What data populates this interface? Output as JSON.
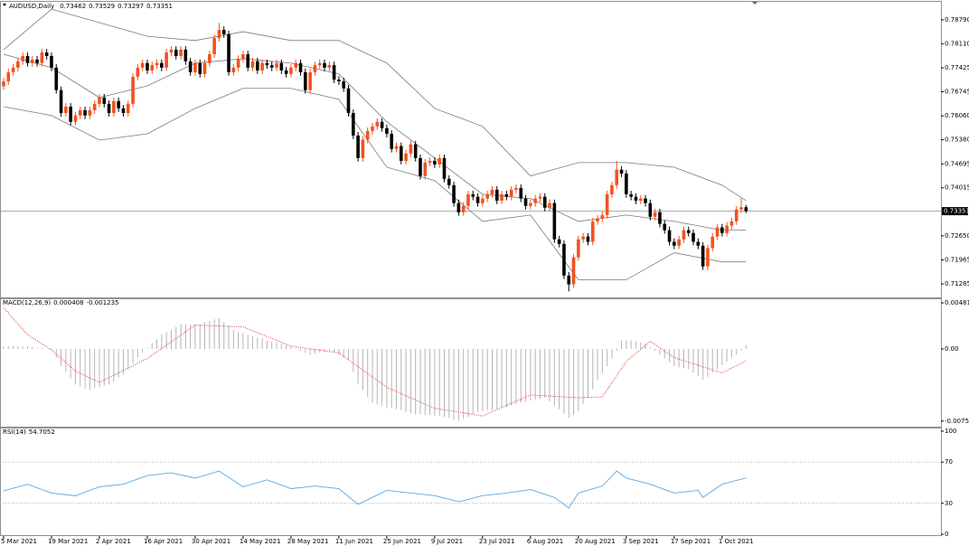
{
  "chart_data": [
    {
      "type": "candlestick",
      "title": "AUDUSD,Daily",
      "up_color": "#f4511e",
      "down_color": "#000000",
      "band_color": "#7a7a7a",
      "price_line_color": "#a0a0a0",
      "xlim": [
        -0.75,
        195.7
      ],
      "ylim": [
        0.709,
        0.793
      ],
      "yticks": [
        {
          "value": 0.7879,
          "label": "0.78790"
        },
        {
          "value": 0.7811,
          "label": "0.78110"
        },
        {
          "value": 0.77425,
          "label": "0.77425"
        },
        {
          "value": 0.76745,
          "label": "0.76745"
        },
        {
          "value": 0.7606,
          "label": "0.76060"
        },
        {
          "value": 0.7538,
          "label": "0.75380"
        },
        {
          "value": 0.74695,
          "label": "0.74695"
        },
        {
          "value": 0.74015,
          "label": "0.74015"
        },
        {
          "value": 0.7265,
          "label": "0.72650"
        },
        {
          "value": 0.71965,
          "label": "0.71965"
        },
        {
          "value": 0.71285,
          "label": "0.71285"
        }
      ],
      "open": [
        0.769,
        0.7704,
        0.773,
        0.7743,
        0.7761,
        0.7776,
        0.7756,
        0.7766,
        0.7756,
        0.7786,
        0.7776,
        0.7743,
        0.7679,
        0.7614,
        0.7632,
        0.7589,
        0.7607,
        0.7622,
        0.7607,
        0.7622,
        0.764,
        0.7658,
        0.764,
        0.7614,
        0.7648,
        0.7627,
        0.7614,
        0.764,
        0.7717,
        0.7743,
        0.7756,
        0.7735,
        0.775,
        0.7756,
        0.7743,
        0.7786,
        0.7794,
        0.7776,
        0.7794,
        0.7761,
        0.773,
        0.7756,
        0.7725,
        0.7756,
        0.7781,
        0.7827,
        0.785,
        0.7838,
        0.773,
        0.7743,
        0.7768,
        0.7781,
        0.7743,
        0.7761,
        0.7735,
        0.7756,
        0.775,
        0.7743,
        0.7756,
        0.7735,
        0.7725,
        0.7743,
        0.7756,
        0.773,
        0.7679,
        0.773,
        0.775,
        0.7756,
        0.7743,
        0.775,
        0.7709,
        0.7704,
        0.7684,
        0.7614,
        0.755,
        0.7486,
        0.7538,
        0.7563,
        0.7576,
        0.7589,
        0.7571,
        0.7555,
        0.7512,
        0.752,
        0.7478,
        0.7499,
        0.7525,
        0.7486,
        0.7435,
        0.7473,
        0.7478,
        0.7468,
        0.7486,
        0.7427,
        0.7409,
        0.7358,
        0.7332,
        0.735,
        0.7383,
        0.7376,
        0.7358,
        0.7371,
        0.7383,
        0.7396,
        0.7365,
        0.7383,
        0.7376,
        0.7396,
        0.7401,
        0.7371,
        0.735,
        0.7358,
        0.7371,
        0.7376,
        0.7345,
        0.7358,
        0.7255,
        0.7242,
        0.7152,
        0.7127,
        0.7204,
        0.7255,
        0.7263,
        0.7248,
        0.7306,
        0.7314,
        0.7324,
        0.7383,
        0.7409,
        0.7453,
        0.7442,
        0.7383,
        0.7376,
        0.7365,
        0.7371,
        0.7358,
        0.7319,
        0.7332,
        0.7299,
        0.7281,
        0.7248,
        0.7237,
        0.7255,
        0.7281,
        0.7273,
        0.7248,
        0.7237,
        0.7178,
        0.723,
        0.7263,
        0.7289,
        0.7273,
        0.7294,
        0.7306,
        0.734,
        0.73462
      ],
      "high": [
        0.7714,
        0.774,
        0.7753,
        0.7771,
        0.7786,
        0.7786,
        0.7776,
        0.7776,
        0.7796,
        0.7796,
        0.7786,
        0.7753,
        0.7689,
        0.7642,
        0.7642,
        0.7617,
        0.7632,
        0.7632,
        0.7632,
        0.765,
        0.7668,
        0.7668,
        0.765,
        0.7658,
        0.7658,
        0.7637,
        0.765,
        0.7727,
        0.7753,
        0.7766,
        0.7766,
        0.776,
        0.7766,
        0.7766,
        0.7796,
        0.7804,
        0.7804,
        0.7804,
        0.7804,
        0.7771,
        0.7766,
        0.7766,
        0.7766,
        0.7791,
        0.7837,
        0.787,
        0.786,
        0.7848,
        0.7753,
        0.7778,
        0.7791,
        0.7791,
        0.7771,
        0.7771,
        0.7766,
        0.7766,
        0.776,
        0.7766,
        0.7766,
        0.7745,
        0.7753,
        0.7766,
        0.7766,
        0.774,
        0.774,
        0.776,
        0.7766,
        0.7766,
        0.776,
        0.776,
        0.7719,
        0.7714,
        0.7694,
        0.7624,
        0.756,
        0.7548,
        0.7573,
        0.7586,
        0.7599,
        0.7599,
        0.7581,
        0.7565,
        0.753,
        0.753,
        0.7509,
        0.7535,
        0.7535,
        0.7496,
        0.7483,
        0.7488,
        0.7488,
        0.7496,
        0.7496,
        0.7437,
        0.7419,
        0.7368,
        0.736,
        0.7393,
        0.7393,
        0.7386,
        0.7381,
        0.7393,
        0.7406,
        0.7406,
        0.7393,
        0.7393,
        0.7406,
        0.7411,
        0.7411,
        0.7381,
        0.7368,
        0.7381,
        0.7386,
        0.7386,
        0.7368,
        0.7368,
        0.7265,
        0.7252,
        0.7162,
        0.7214,
        0.7265,
        0.7273,
        0.7273,
        0.7316,
        0.7324,
        0.7334,
        0.7393,
        0.7419,
        0.7478,
        0.7463,
        0.7452,
        0.7393,
        0.7386,
        0.7381,
        0.7381,
        0.7368,
        0.7342,
        0.7342,
        0.7309,
        0.7291,
        0.7258,
        0.7265,
        0.7291,
        0.7291,
        0.7283,
        0.7258,
        0.7247,
        0.724,
        0.7273,
        0.7299,
        0.7299,
        0.7304,
        0.7316,
        0.735,
        0.7372,
        0.73529
      ],
      "low": [
        0.768,
        0.7694,
        0.772,
        0.7733,
        0.7751,
        0.7746,
        0.7746,
        0.7746,
        0.7746,
        0.7766,
        0.7733,
        0.7669,
        0.7604,
        0.7604,
        0.7579,
        0.7579,
        0.7597,
        0.7597,
        0.7597,
        0.7612,
        0.763,
        0.763,
        0.7604,
        0.7604,
        0.7617,
        0.7604,
        0.7604,
        0.763,
        0.7707,
        0.7733,
        0.7725,
        0.7725,
        0.774,
        0.7733,
        0.7733,
        0.7776,
        0.7766,
        0.7766,
        0.7751,
        0.772,
        0.772,
        0.7715,
        0.7715,
        0.7746,
        0.7771,
        0.7817,
        0.7828,
        0.772,
        0.772,
        0.7733,
        0.7758,
        0.7733,
        0.7733,
        0.7725,
        0.7725,
        0.774,
        0.7733,
        0.7733,
        0.7725,
        0.7715,
        0.7715,
        0.7733,
        0.772,
        0.7669,
        0.7669,
        0.772,
        0.774,
        0.7733,
        0.7733,
        0.7699,
        0.7694,
        0.7674,
        0.7604,
        0.754,
        0.7476,
        0.7476,
        0.7528,
        0.7553,
        0.7566,
        0.7561,
        0.7545,
        0.7502,
        0.7502,
        0.7468,
        0.7468,
        0.7489,
        0.7476,
        0.7425,
        0.7425,
        0.7463,
        0.7458,
        0.7458,
        0.7417,
        0.7399,
        0.7348,
        0.7322,
        0.7322,
        0.734,
        0.7366,
        0.7348,
        0.7348,
        0.7361,
        0.7373,
        0.7355,
        0.7355,
        0.7366,
        0.7366,
        0.7386,
        0.7361,
        0.734,
        0.734,
        0.7348,
        0.7361,
        0.7335,
        0.7335,
        0.7245,
        0.7232,
        0.7142,
        0.7107,
        0.7117,
        0.7194,
        0.7245,
        0.7238,
        0.7238,
        0.7296,
        0.7304,
        0.7314,
        0.7373,
        0.7399,
        0.7432,
        0.7373,
        0.7366,
        0.7355,
        0.7355,
        0.7348,
        0.7309,
        0.7309,
        0.7289,
        0.7271,
        0.7238,
        0.7227,
        0.7227,
        0.7245,
        0.7263,
        0.7238,
        0.7227,
        0.7168,
        0.7168,
        0.722,
        0.7253,
        0.7263,
        0.7263,
        0.7284,
        0.7296,
        0.733,
        0.73297
      ],
      "close": [
        0.7704,
        0.773,
        0.7743,
        0.7761,
        0.7776,
        0.7756,
        0.7766,
        0.7756,
        0.7786,
        0.7776,
        0.7743,
        0.7679,
        0.7614,
        0.7632,
        0.7589,
        0.7607,
        0.7622,
        0.7607,
        0.7622,
        0.764,
        0.7658,
        0.764,
        0.7614,
        0.7648,
        0.7627,
        0.7614,
        0.764,
        0.7717,
        0.7743,
        0.7756,
        0.7735,
        0.775,
        0.7756,
        0.7743,
        0.7786,
        0.7794,
        0.7776,
        0.7794,
        0.7761,
        0.773,
        0.7756,
        0.7725,
        0.7756,
        0.7781,
        0.7827,
        0.785,
        0.7838,
        0.773,
        0.7743,
        0.7768,
        0.7781,
        0.7743,
        0.7761,
        0.7735,
        0.7756,
        0.775,
        0.7743,
        0.7756,
        0.7735,
        0.7725,
        0.7743,
        0.7756,
        0.773,
        0.7679,
        0.773,
        0.775,
        0.7756,
        0.7743,
        0.775,
        0.7709,
        0.7704,
        0.7684,
        0.7614,
        0.755,
        0.7486,
        0.7538,
        0.7563,
        0.7576,
        0.7589,
        0.7571,
        0.7555,
        0.7512,
        0.752,
        0.7478,
        0.7499,
        0.7525,
        0.7486,
        0.7435,
        0.7473,
        0.7478,
        0.7468,
        0.7486,
        0.7427,
        0.7409,
        0.7358,
        0.7332,
        0.735,
        0.7383,
        0.7376,
        0.7358,
        0.7371,
        0.7383,
        0.7396,
        0.7365,
        0.7383,
        0.7376,
        0.7396,
        0.7401,
        0.7371,
        0.735,
        0.7358,
        0.7371,
        0.7376,
        0.7345,
        0.7358,
        0.7255,
        0.7242,
        0.7152,
        0.7127,
        0.7204,
        0.7255,
        0.7263,
        0.7248,
        0.7306,
        0.7314,
        0.7324,
        0.7383,
        0.7409,
        0.7453,
        0.7442,
        0.7383,
        0.7376,
        0.7365,
        0.7371,
        0.7358,
        0.7319,
        0.7332,
        0.7299,
        0.7281,
        0.7248,
        0.7237,
        0.7255,
        0.7281,
        0.7273,
        0.7248,
        0.7237,
        0.7178,
        0.723,
        0.7263,
        0.7289,
        0.7273,
        0.7294,
        0.7306,
        0.734,
        0.73462,
        0.73351
      ],
      "bands": {
        "x": [
          0,
          10,
          20,
          30,
          40,
          50,
          60,
          70,
          80,
          90,
          100,
          110,
          120,
          130,
          140,
          150,
          155
        ],
        "upper": [
          0.7794,
          0.7909,
          0.7871,
          0.7832,
          0.782,
          0.7845,
          0.782,
          0.782,
          0.7756,
          0.7627,
          0.7576,
          0.7435,
          0.7473,
          0.7473,
          0.746,
          0.7409,
          0.7365
        ],
        "middle": [
          0.7781,
          0.7743,
          0.7658,
          0.7691,
          0.7756,
          0.7768,
          0.7756,
          0.7725,
          0.7589,
          0.7486,
          0.7383,
          0.7371,
          0.7306,
          0.7324,
          0.7306,
          0.7281,
          0.7281
        ],
        "lower": [
          0.7632,
          0.7607,
          0.7537,
          0.7555,
          0.7627,
          0.7684,
          0.7684,
          0.7653,
          0.746,
          0.7422,
          0.7306,
          0.7324,
          0.714,
          0.714,
          0.7217,
          0.7191,
          0.7191
        ]
      }
    },
    {
      "type": "bar",
      "title": "MACD(12,26,9)",
      "color": "#b4b4b4",
      "signal_color": "#e8302a",
      "xlim": [
        -0.75,
        195.7
      ],
      "ylim": [
        -0.00812,
        0.0052
      ],
      "yticks": [
        0.004817,
        {
          "value": 0,
          "label": "0.00"
        },
        -0.007537
      ],
      "values": [
        0.0003,
        0.0003,
        0.0003,
        0.0003,
        0.0003,
        0.0003,
        0.0002,
        0.0001,
        0.0001,
        0.0,
        -0.0001,
        -0.0009,
        -0.0018,
        -0.0024,
        -0.0031,
        -0.0037,
        -0.0039,
        -0.0041,
        -0.0043,
        -0.0041,
        -0.004,
        -0.0038,
        -0.0037,
        -0.0034,
        -0.003,
        -0.0027,
        -0.0021,
        -0.0015,
        -0.0009,
        -0.0004,
        0.0001,
        0.0006,
        0.001,
        0.0015,
        0.0018,
        0.002,
        0.0023,
        0.0026,
        0.0026,
        0.0026,
        0.0026,
        0.0026,
        0.0028,
        0.0029,
        0.0031,
        0.0032,
        0.0028,
        0.0024,
        0.002,
        0.0018,
        0.0017,
        0.0015,
        0.0013,
        0.0012,
        0.0011,
        0.0009,
        0.0008,
        0.0007,
        0.0006,
        0.0004,
        0.0003,
        0.0001,
        -0.0002,
        -0.0004,
        -0.0006,
        -0.0005,
        -0.0004,
        -0.0003,
        -0.0002,
        -0.0004,
        -0.0006,
        -0.0009,
        -0.0011,
        -0.0024,
        -0.0037,
        -0.0043,
        -0.005,
        -0.0056,
        -0.0058,
        -0.0059,
        -0.0061,
        -0.0062,
        -0.0063,
        -0.0064,
        -0.0066,
        -0.0067,
        -0.0068,
        -0.0068,
        -0.0069,
        -0.0069,
        -0.007,
        -0.007,
        -0.0071,
        -0.0072,
        -0.0074,
        -0.0075,
        -0.0073,
        -0.0071,
        -0.0068,
        -0.0066,
        -0.0065,
        -0.0064,
        -0.0064,
        -0.0063,
        -0.0062,
        -0.0061,
        -0.0059,
        -0.0058,
        -0.0056,
        -0.0055,
        -0.0054,
        -0.0053,
        -0.0052,
        -0.0051,
        -0.0055,
        -0.0059,
        -0.0063,
        -0.0068,
        -0.0072,
        -0.0069,
        -0.0065,
        -0.0058,
        -0.0051,
        -0.0042,
        -0.0032,
        -0.0025,
        -0.0018,
        -0.001,
        -0.0002,
        0.0009,
        0.0009,
        0.0009,
        0.0008,
        0.0007,
        0.0006,
        0.0002,
        -0.0002,
        -0.0006,
        -0.001,
        -0.0014,
        -0.0018,
        -0.0019,
        -0.002,
        -0.0021,
        -0.0025,
        -0.0028,
        -0.0032,
        -0.0029,
        -0.0025,
        -0.0021,
        -0.0017,
        -0.0013,
        -0.0009,
        -0.0006,
        -0.0002,
        0.000408
      ],
      "signal": {
        "x": [
          0,
          5,
          10,
          15,
          20,
          30,
          40,
          50,
          60,
          70,
          80,
          90,
          100,
          110,
          120,
          125,
          130,
          135,
          140,
          150,
          155
        ],
        "values": [
          0.0043,
          0.0015,
          -0.0001,
          -0.0023,
          -0.0035,
          -0.001,
          0.0025,
          0.0023,
          0.0003,
          -0.0004,
          -0.004,
          -0.0062,
          -0.007,
          -0.0048,
          -0.0051,
          -0.005,
          -0.0013,
          0.0008,
          -0.0009,
          -0.0025,
          -0.001235
        ]
      }
    },
    {
      "type": "line",
      "title": "RSI(14)",
      "color": "#58a8e6",
      "xlim": [
        -0.75,
        195.7
      ],
      "ylim": [
        0,
        100
      ],
      "yticks": [
        100,
        70,
        30,
        0
      ],
      "x": [
        0,
        5,
        10,
        15,
        20,
        25,
        30,
        35,
        40,
        45,
        50,
        55,
        60,
        65,
        70,
        74,
        80,
        85,
        90,
        95,
        100,
        105,
        110,
        115,
        118,
        120,
        125,
        128,
        130,
        135,
        140,
        145,
        146,
        150,
        155
      ],
      "values": [
        42,
        48.5,
        40,
        37.4,
        46,
        48.5,
        57,
        59.6,
        54.5,
        61.3,
        46,
        52.8,
        44.3,
        46.8,
        44.3,
        29,
        42.6,
        40,
        37.4,
        31.5,
        37.4,
        40,
        43.4,
        35.7,
        25.5,
        40,
        46.8,
        61.3,
        54.5,
        48.5,
        40,
        42.6,
        35.7,
        48.5,
        54.7052
      ],
      "xticks": [
        {
          "value": 0,
          "label": "5 Mar 2021"
        },
        {
          "value": 10,
          "label": "19 Mar 2021"
        },
        {
          "value": 20,
          "label": "2 Apr 2021"
        },
        {
          "value": 30,
          "label": "16 Apr 2021"
        },
        {
          "value": 40,
          "label": "30 Apr 2021"
        },
        {
          "value": 50,
          "label": "14 May 2021"
        },
        {
          "value": 60,
          "label": "28 May 2021"
        },
        {
          "value": 70,
          "label": "11 Jun 2021"
        },
        {
          "value": 80,
          "label": "25 Jun 2021"
        },
        {
          "value": 90,
          "label": "9 Jul 2021"
        },
        {
          "value": 100,
          "label": "23 Jul 2021"
        },
        {
          "value": 110,
          "label": "6 Aug 2021"
        },
        {
          "value": 120,
          "label": "20 Aug 2021"
        },
        {
          "value": 130,
          "label": "3 Sep 2021"
        },
        {
          "value": 140,
          "label": "17 Sep 2021"
        },
        {
          "value": 150,
          "label": "1 Oct 2021"
        }
      ]
    }
  ]
}
